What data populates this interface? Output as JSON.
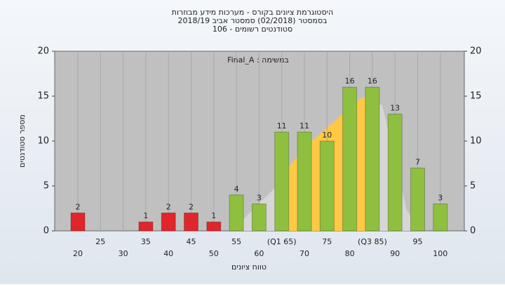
{
  "chart_data": {
    "type": "bar",
    "title": "היסטוגרמת ציונים בקורס - מערכות מידע מבוזרות",
    "subtitle": "בסמסטר  (02/2018)  סמסטר אביב 2018/19",
    "subtitle2": "סטודנטים רשומים - 106",
    "annotation": "Final_A : במשימה",
    "x_label": "טווח ציונים",
    "y_label": "מספר סטודנטים",
    "categories": [
      "20",
      "25",
      "30",
      "35",
      "40",
      "45",
      "50",
      "55",
      "60",
      "(Q1 65)",
      "70",
      "75",
      "80",
      "(Q3 85)",
      "90",
      "95",
      "100"
    ],
    "values": [
      2,
      0,
      0,
      1,
      2,
      2,
      1,
      4,
      3,
      11,
      11,
      10,
      16,
      16,
      13,
      7,
      3
    ],
    "colors": [
      "#e0262b",
      "#e0262b",
      "#e0262b",
      "#e0262b",
      "#e0262b",
      "#e0262b",
      "#e0262b",
      "#8fbf3f",
      "#8fbf3f",
      "#8fbf3f",
      "#8fbf3f",
      "#8fbf3f",
      "#8fbf3f",
      "#8fbf3f",
      "#8fbf3f",
      "#8fbf3f",
      "#8fbf3f"
    ],
    "ylim": [
      0,
      20
    ],
    "yticks": [
      0,
      5,
      10,
      15,
      20
    ],
    "y2lim": [
      0,
      20
    ],
    "y2ticks": [
      0,
      5,
      10,
      15,
      20
    ],
    "grid": true
  }
}
